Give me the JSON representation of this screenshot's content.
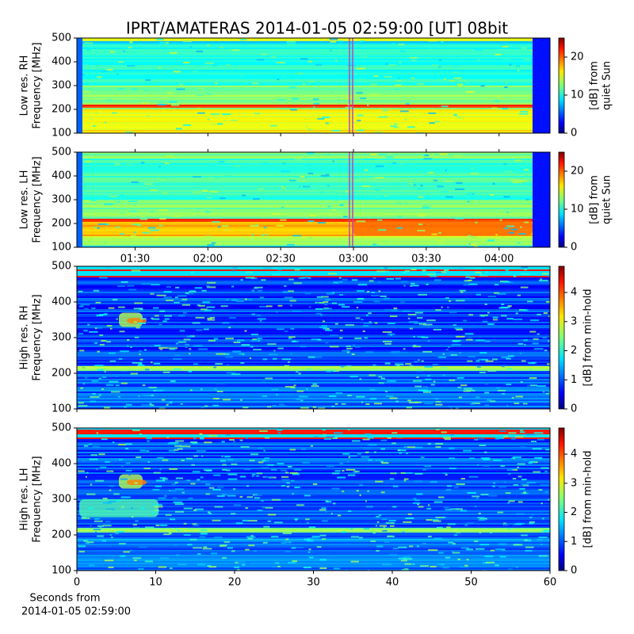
{
  "chart_data": [
    {
      "type": "heatmap",
      "title": "IPRT/AMATERAS 2014-01-05 02:59:00 [UT]   08bit",
      "ylabel": [
        "Low res. RH",
        "Frequency [MHz]"
      ],
      "ylim": [
        100,
        500
      ],
      "yticks": [
        100,
        200,
        300,
        400,
        500
      ],
      "xlim": [
        66,
        261
      ],
      "xticks": [
        90,
        120,
        150,
        180,
        210,
        240
      ],
      "marker_x": 179,
      "marker_color": "#c040c0",
      "colorbar": {
        "label": [
          "[dB] from",
          "quiet Sun"
        ],
        "lim": [
          0,
          25
        ],
        "ticks": [
          0,
          10,
          20
        ]
      }
    },
    {
      "type": "heatmap",
      "ylabel": [
        "Low res. LH",
        "Frequency [MHz]"
      ],
      "ylim": [
        100,
        500
      ],
      "yticks": [
        100,
        200,
        300,
        400,
        500
      ],
      "xlim": [
        66,
        261
      ],
      "xticks": [
        {
          "value": 90,
          "label": "01:30"
        },
        {
          "value": 120,
          "label": "02:00"
        },
        {
          "value": 150,
          "label": "02:30"
        },
        {
          "value": 180,
          "label": "03:00"
        },
        {
          "value": 210,
          "label": "03:30"
        },
        {
          "value": 240,
          "label": "04:00"
        }
      ],
      "marker_x": 179,
      "marker_color": "#c040c0",
      "colorbar": {
        "label": [
          "[dB] from",
          "quiet Sun"
        ],
        "lim": [
          0,
          25
        ],
        "ticks": [
          0,
          10,
          20
        ]
      }
    },
    {
      "type": "heatmap",
      "ylabel": [
        "High res. RH",
        "Frequency [MHz]"
      ],
      "ylim": [
        100,
        500
      ],
      "yticks": [
        100,
        200,
        300,
        400,
        500
      ],
      "xlim": [
        0,
        60
      ],
      "xticks": [
        0,
        10,
        20,
        30,
        40,
        50,
        60
      ],
      "colorbar": {
        "label": [
          "[dB] from min-hold"
        ],
        "lim": [
          0,
          4.9
        ],
        "ticks": [
          0,
          1,
          2,
          3,
          4
        ]
      }
    },
    {
      "type": "heatmap",
      "ylabel": [
        "High res. LH",
        "Frequency [MHz]"
      ],
      "ylim": [
        100,
        500
      ],
      "yticks": [
        100,
        200,
        300,
        400,
        500
      ],
      "xlim": [
        0,
        60
      ],
      "xticks": [
        0,
        10,
        20,
        30,
        40,
        50,
        60
      ],
      "xlabel": [
        "Seconds from",
        "2014-01-05 02:59:00"
      ],
      "colorbar": {
        "label": [
          "[dB] from min-hold"
        ],
        "lim": [
          0,
          4.9
        ],
        "ticks": [
          0,
          1,
          2,
          3,
          4
        ]
      }
    }
  ]
}
